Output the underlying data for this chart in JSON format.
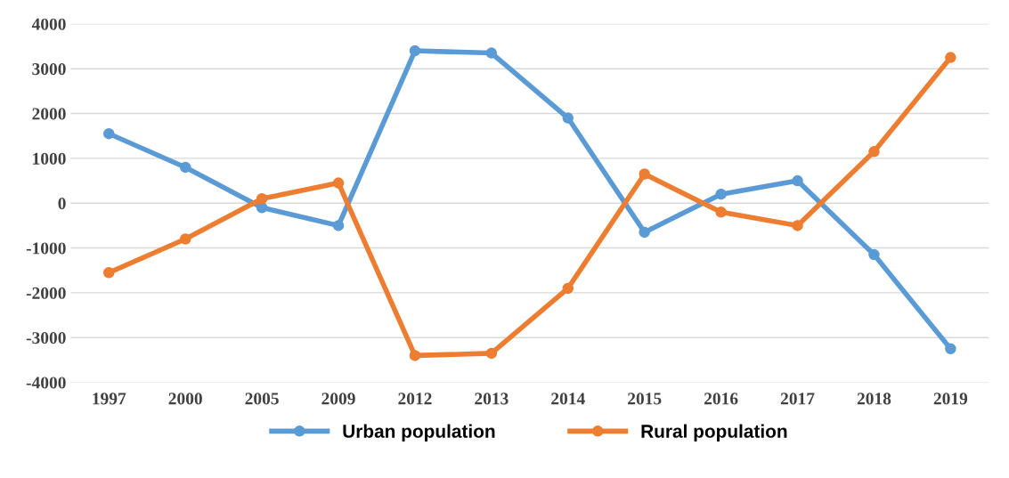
{
  "chart_data": {
    "type": "line",
    "categories": [
      "1997",
      "2000",
      "2005",
      "2009",
      "2012",
      "2013",
      "2014",
      "2015",
      "2016",
      "2017",
      "2018",
      "2019"
    ],
    "series": [
      {
        "name": "Urban population",
        "color": "#5b9bd5",
        "values": [
          1550,
          800,
          -100,
          -500,
          3400,
          3350,
          1900,
          -650,
          200,
          500,
          -1150,
          -3250
        ]
      },
      {
        "name": "Rural population",
        "color": "#ed7d31",
        "values": [
          -1550,
          -800,
          100,
          450,
          -3400,
          -3350,
          -1900,
          650,
          -200,
          -500,
          1150,
          3250
        ]
      }
    ],
    "ylim": [
      -4000,
      4000
    ],
    "yticks": [
      -4000,
      -3000,
      -2000,
      -1000,
      0,
      1000,
      2000,
      3000,
      4000
    ],
    "grid": "y",
    "legend": "bottom",
    "marker": "circle",
    "line_style": "solid"
  }
}
